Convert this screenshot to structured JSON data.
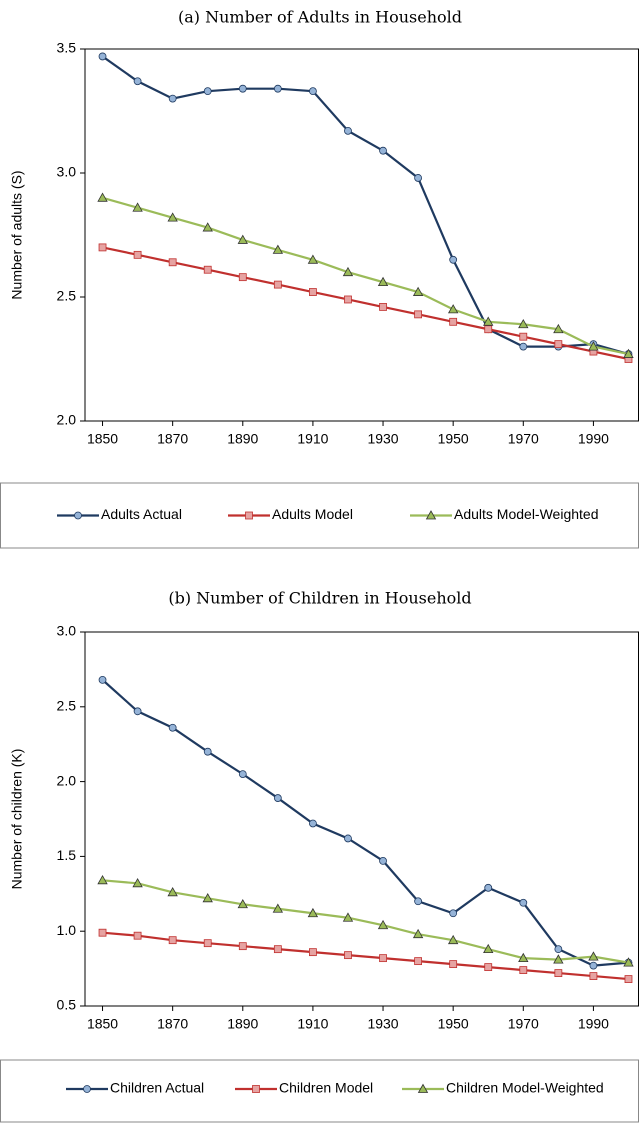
{
  "chart_data": [
    {
      "type": "line",
      "title": "(a) Number of Adults in Household",
      "y_label": "Number of adults (S)",
      "x": [
        1850,
        1860,
        1870,
        1880,
        1890,
        1900,
        1910,
        1920,
        1930,
        1940,
        1950,
        1960,
        1970,
        1980,
        1990,
        2000
      ],
      "xlim": [
        1845,
        2003
      ],
      "xticks": [
        1850,
        1870,
        1890,
        1910,
        1930,
        1950,
        1970,
        1990
      ],
      "ylim": [
        2,
        3.5
      ],
      "yticks": [
        {
          "value": 2,
          "label": "2.0"
        },
        2.5,
        {
          "value": 3,
          "label": "3.0"
        },
        3.5
      ],
      "grid": false,
      "legend": "bottom",
      "series": [
        {
          "name": "Adults Actual",
          "color": "#1f3a60",
          "marker": "circle",
          "marker_fill": "#95b3d7",
          "values": [
            3.47,
            3.37,
            3.3,
            3.33,
            3.34,
            3.34,
            3.33,
            3.17,
            3.09,
            2.98,
            2.65,
            2.37,
            2.3,
            2.3,
            2.31,
            2.27
          ]
        },
        {
          "name": "Adults Model",
          "color": "#c0302e",
          "marker": "square",
          "marker_fill": "#e6a3a2",
          "values": [
            2.7,
            2.67,
            2.64,
            2.61,
            2.58,
            2.55,
            2.52,
            2.49,
            2.46,
            2.43,
            2.4,
            2.37,
            2.34,
            2.31,
            2.28,
            2.25
          ]
        },
        {
          "name": "Adults Model-Weighted",
          "color": "#9bbb59",
          "marker": "triangle",
          "marker_fill": "#9bbb59",
          "values": [
            2.9,
            2.86,
            2.82,
            2.78,
            2.73,
            2.69,
            2.65,
            2.6,
            2.56,
            2.52,
            2.45,
            2.4,
            2.39,
            2.37,
            2.3,
            2.27
          ]
        }
      ]
    },
    {
      "type": "line",
      "title": "(b) Number of Children in Household",
      "y_label": "Number of children (K)",
      "x": [
        1850,
        1860,
        1870,
        1880,
        1890,
        1900,
        1910,
        1920,
        1930,
        1940,
        1950,
        1960,
        1970,
        1980,
        1990,
        2000
      ],
      "xlim": [
        1845,
        2003
      ],
      "xticks": [
        1850,
        1870,
        1890,
        1910,
        1930,
        1950,
        1970,
        1990
      ],
      "ylim": [
        0.5,
        3
      ],
      "yticks": [
        0.5,
        {
          "value": 1,
          "label": "1.0"
        },
        1.5,
        {
          "value": 2,
          "label": "2.0"
        },
        2.5,
        {
          "value": 3,
          "label": "3.0"
        }
      ],
      "grid": false,
      "legend": "bottom",
      "series": [
        {
          "name": "Children Actual",
          "color": "#1f3a60",
          "marker": "circle",
          "marker_fill": "#95b3d7",
          "values": [
            2.68,
            2.47,
            2.36,
            2.2,
            2.05,
            1.89,
            1.72,
            1.62,
            1.47,
            1.2,
            1.12,
            1.29,
            1.19,
            0.88,
            0.77,
            0.79
          ]
        },
        {
          "name": "Children Model",
          "color": "#c0302e",
          "marker": "square",
          "marker_fill": "#e6a3a2",
          "values": [
            0.99,
            0.97,
            0.94,
            0.92,
            0.9,
            0.88,
            0.86,
            0.84,
            0.82,
            0.8,
            0.78,
            0.76,
            0.74,
            0.72,
            0.7,
            0.68
          ]
        },
        {
          "name": "Children Model-Weighted",
          "color": "#9bbb59",
          "marker": "triangle",
          "marker_fill": "#9bbb59",
          "values": [
            1.34,
            1.32,
            1.26,
            1.22,
            1.18,
            1.15,
            1.12,
            1.09,
            1.04,
            0.98,
            0.94,
            0.88,
            0.82,
            0.81,
            0.83,
            0.79
          ]
        }
      ]
    }
  ]
}
